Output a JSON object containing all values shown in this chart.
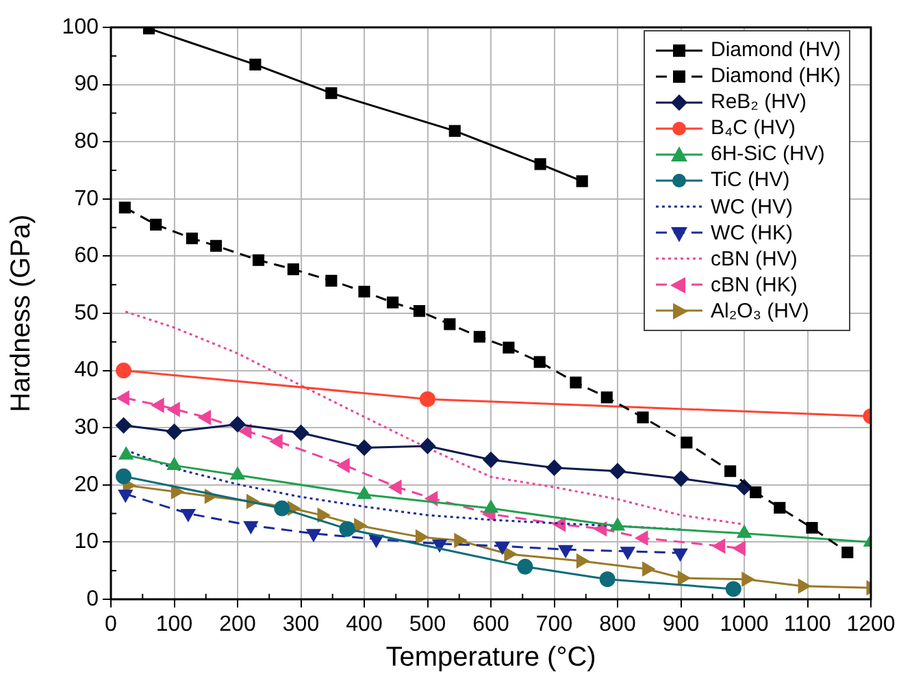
{
  "chart_data": {
    "type": "line",
    "xlabel": "Temperature (°C)",
    "ylabel": "Hardness (GPa)",
    "xlim": [
      0,
      1200
    ],
    "ylim": [
      0,
      100
    ],
    "xticks": [
      0,
      100,
      200,
      300,
      400,
      500,
      600,
      700,
      800,
      900,
      1000,
      1100,
      1200
    ],
    "yticks": [
      0,
      10,
      20,
      30,
      40,
      50,
      60,
      70,
      80,
      90,
      100
    ],
    "grid": true,
    "legend": "top right",
    "series": [
      {
        "name": "Diamond (HV)",
        "color": "#000000",
        "marker": "square",
        "line_style": "solid",
        "x": [
          60,
          228,
          348,
          543,
          678,
          744
        ],
        "values": [
          99.8,
          93.5,
          88.5,
          81.9,
          76.1,
          73.1
        ]
      },
      {
        "name": "Diamond (HK)",
        "color": "#000000",
        "marker": "square",
        "line_style": "dashed",
        "x": [
          22,
          71,
          128,
          166,
          233,
          288,
          348,
          400,
          445,
          487,
          535,
          582,
          628,
          677,
          734,
          783,
          840,
          909,
          978,
          1018,
          1056,
          1107,
          1163
        ],
        "values": [
          68.5,
          65.5,
          63.1,
          61.8,
          59.3,
          57.7,
          55.7,
          53.8,
          51.9,
          50.4,
          48.1,
          45.9,
          44.0,
          41.5,
          37.9,
          35.3,
          31.8,
          27.4,
          22.4,
          18.7,
          16.0,
          12.5,
          8.2
        ]
      },
      {
        "name": "ReB₂ (HV)",
        "color": "#0a1a50",
        "marker": "diamond",
        "line_style": "solid",
        "x": [
          20,
          100,
          200,
          300,
          400,
          500,
          600,
          700,
          800,
          900,
          1000
        ],
        "values": [
          30.4,
          29.3,
          30.6,
          29.1,
          26.5,
          26.8,
          24.4,
          23.0,
          22.4,
          21.1,
          19.6
        ]
      },
      {
        "name": "B₄C (HV)",
        "color": "#ff4433",
        "marker": "circle",
        "line_style": "solid",
        "x": [
          20,
          500,
          1200
        ],
        "values": [
          40,
          35,
          32
        ]
      },
      {
        "name": "6H-SiC (HV)",
        "color": "#22a050",
        "marker": "triangle",
        "line_style": "solid",
        "x": [
          24,
          100,
          200,
          400,
          600,
          800,
          1000,
          1200
        ],
        "values": [
          25.2,
          23.4,
          21.7,
          18.3,
          15.9,
          12.8,
          11.5,
          10.0
        ]
      },
      {
        "name": "TiC (HV)",
        "color": "#0e6b7a",
        "marker": "circle",
        "line_style": "solid",
        "x": [
          20,
          270,
          373,
          654,
          784,
          983
        ],
        "values": [
          21.5,
          15.9,
          12.3,
          5.7,
          3.5,
          1.8
        ]
      },
      {
        "name": "WC (HV)",
        "color": "#1a2a9a",
        "marker": "none",
        "line_style": "dotted",
        "x": [
          23,
          100,
          200,
          300,
          400,
          500,
          600,
          700,
          800,
          900
        ],
        "values": [
          26.1,
          22.9,
          20.1,
          17.9,
          16.2,
          14.7,
          13.9,
          13.3,
          12.8,
          12.2
        ]
      },
      {
        "name": "WC (HK)",
        "color": "#1a2a9a",
        "marker": "triangle-down",
        "line_style": "dashed",
        "x": [
          23,
          122,
          221,
          320,
          419,
          519,
          618,
          718,
          816,
          899
        ],
        "values": [
          18.4,
          15.0,
          12.9,
          11.5,
          10.5,
          9.7,
          9.3,
          8.7,
          8.4,
          8.1
        ]
      },
      {
        "name": "cBN (HV)",
        "color": "#ee4499",
        "marker": "none",
        "line_style": "dotted",
        "x": [
          23,
          100,
          200,
          300,
          387,
          499,
          600,
          700,
          800,
          900,
          1000
        ],
        "values": [
          50.3,
          47.5,
          43.0,
          37.4,
          32.6,
          26.5,
          21.4,
          19.6,
          17.5,
          14.7,
          13.1
        ]
      },
      {
        "name": "cBN (HK)",
        "color": "#ee4499",
        "marker": "triangle-left",
        "line_style": "dashed",
        "x": [
          22,
          77,
          102,
          151,
          215,
          264,
          370,
          452,
          509,
          600,
          711,
          776,
          841,
          963,
          995
        ],
        "values": [
          35.2,
          33.9,
          33.2,
          31.8,
          29.4,
          27.6,
          23.4,
          19.6,
          17.6,
          14.9,
          13.1,
          12.3,
          10.7,
          9.3,
          8.9
        ]
      },
      {
        "name": "Al₂O₃ (HV)",
        "color": "#9a7a28",
        "marker": "triangle-right",
        "line_style": "solid",
        "x": [
          26,
          102,
          155,
          221,
          286,
          333,
          391,
          488,
          549,
          628,
          742,
          846,
          902,
          1003,
          1092,
          1200
        ],
        "values": [
          19.9,
          18.8,
          18.0,
          17.1,
          15.9,
          14.7,
          12.9,
          10.9,
          10.3,
          7.9,
          6.7,
          5.3,
          3.7,
          3.5,
          2.3,
          2.0
        ]
      }
    ]
  }
}
